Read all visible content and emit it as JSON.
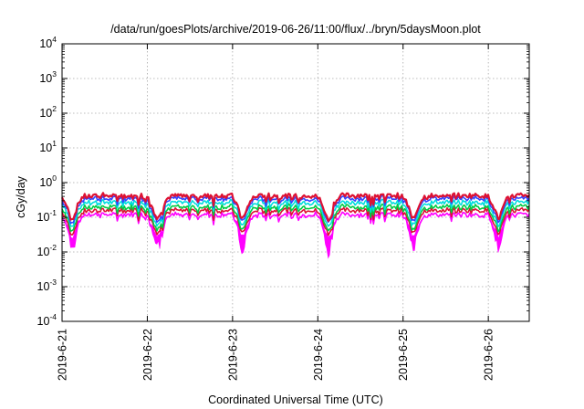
{
  "chart_data": {
    "type": "line",
    "title": "/data/run/goesPlots/archive/2019-06-26/11:00/flux/../bryn/5daysMoon.plot",
    "xlabel": "Coordinated Universal Time (UTC)",
    "ylabel": "cGy/day",
    "scale": {
      "y": "log"
    },
    "grid": true,
    "legend": "none",
    "x_ticks": [
      "2019-6-21",
      "2019-6-22",
      "2019-6-23",
      "2019-6-24",
      "2019-6-25",
      "2019-6-26"
    ],
    "x_range_days": [
      0,
      5.48
    ],
    "ylim": [
      0.0001,
      10000
    ],
    "y_ticks": [
      {
        "base": "10",
        "exp": "-4"
      },
      {
        "base": "10",
        "exp": "-3"
      },
      {
        "base": "10",
        "exp": "-2"
      },
      {
        "base": "10",
        "exp": "-1"
      },
      {
        "base": "10",
        "exp": "0"
      },
      {
        "base": "10",
        "exp": "1"
      },
      {
        "base": "10",
        "exp": "2"
      },
      {
        "base": "10",
        "exp": "3"
      },
      {
        "base": "10",
        "exp": "4"
      }
    ],
    "colors": [
      "#ff00ff",
      "#dd1133",
      "#00cc44",
      "#00dddd",
      "#3344ff",
      "#dd1133"
    ],
    "series_levels": [
      0.12,
      0.16,
      0.2,
      0.27,
      0.35,
      0.42
    ],
    "daily_pattern": {
      "day_of_year_low": "near each day boundary, minimum ~0.03 cGy/day",
      "plateau": "~0.14 to 0.42 cGy/day"
    }
  }
}
